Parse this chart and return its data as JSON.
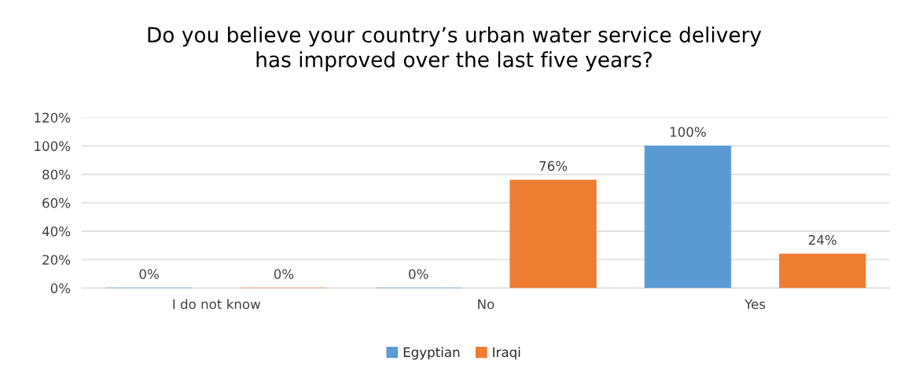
{
  "chart_data": {
    "type": "bar",
    "title": "Do you believe your country’s urban water service delivery\nhas improved over the last five years?",
    "categories": [
      "I do not know",
      "No",
      "Yes"
    ],
    "series": [
      {
        "name": "Egyptian",
        "color": "#5b9bd5",
        "values": [
          0,
          0,
          100
        ],
        "value_labels": [
          "0%",
          "0%",
          "100%"
        ]
      },
      {
        "name": "Iraqi",
        "color": "#ed7d31",
        "values": [
          0,
          76,
          24
        ],
        "value_labels": [
          "0%",
          "76%",
          "24%"
        ]
      }
    ],
    "ylim": [
      0,
      120
    ],
    "yticks": [
      {
        "value": 0,
        "label": "0%"
      },
      {
        "value": 20,
        "label": "20%"
      },
      {
        "value": 40,
        "label": "40%"
      },
      {
        "value": 60,
        "label": "60%"
      },
      {
        "value": 80,
        "label": "80%"
      },
      {
        "value": 100,
        "label": "100%"
      },
      {
        "value": 120,
        "label": "120%"
      }
    ],
    "grid": "y",
    "legend": "bottom"
  }
}
